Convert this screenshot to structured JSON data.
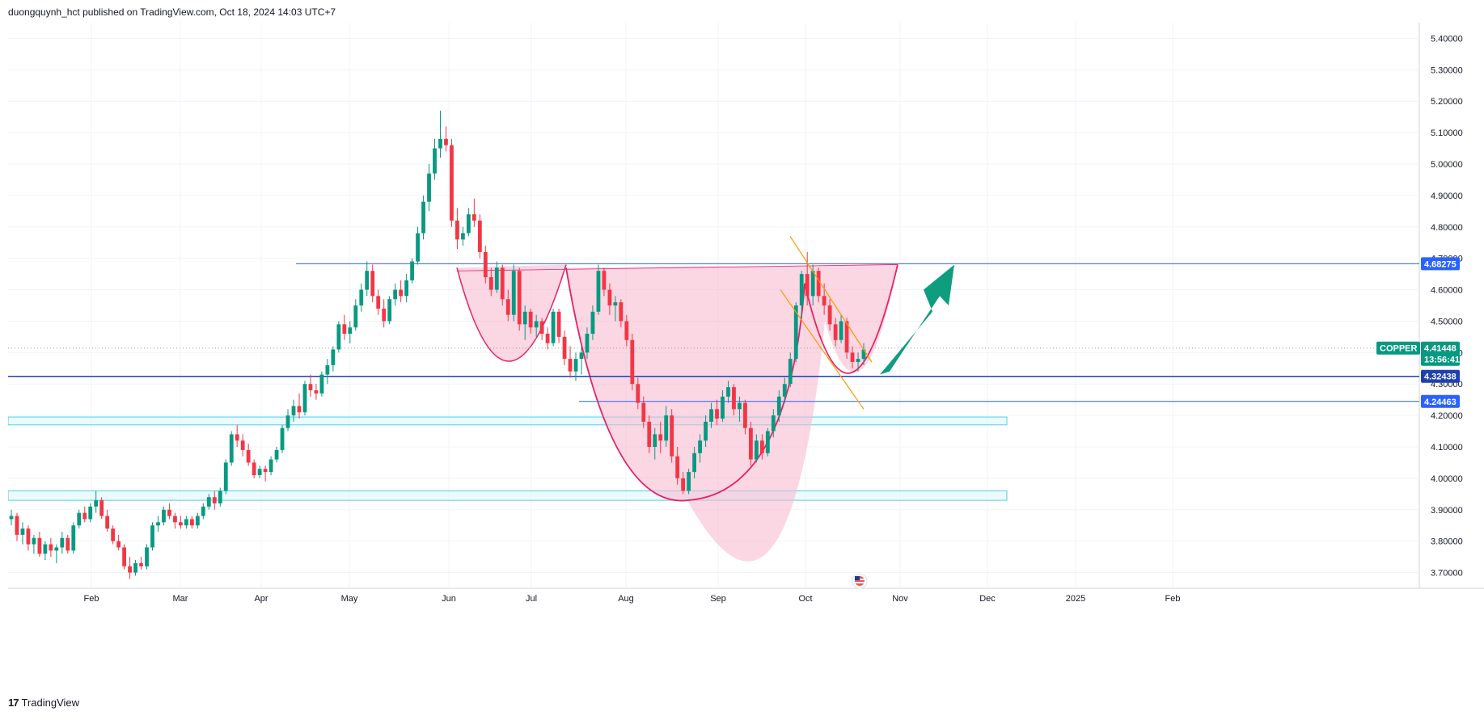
{
  "header": {
    "publish_line": "duongquynh_hct published on TradingView.com, Oct 18, 2024 14:03 UTC+7"
  },
  "footer": {
    "brand": "TradingView",
    "logo_glyph": "17"
  },
  "colors": {
    "up": "#089981",
    "down": "#f23645",
    "grid": "#f0f3fa",
    "resistance": "#2962ff",
    "pattern_fill": "#f8bbd0",
    "pattern_stroke": "#e91e63",
    "trend": "#ff9800",
    "zone_fill": "#e0f7fa",
    "zone_stroke": "#4dd0e1",
    "arrow": "#0f9d7f"
  },
  "chart_data": {
    "type": "candlestick",
    "symbol": "COPPER",
    "last_price": "4.41448",
    "countdown": "13:56:41",
    "price_axis": {
      "min": 3.65,
      "max": 5.45,
      "ticks": [
        "5.40000",
        "5.30000",
        "5.20000",
        "5.10000",
        "5.00000",
        "4.90000",
        "4.80000",
        "4.70000",
        "4.60000",
        "4.50000",
        "4.40000",
        "4.30000",
        "4.20000",
        "4.10000",
        "4.00000",
        "3.90000",
        "3.80000",
        "3.70000"
      ]
    },
    "time_axis": {
      "ticks": [
        "Feb",
        "Mar",
        "Apr",
        "May",
        "Jun",
        "Jul",
        "Aug",
        "Sep",
        "Oct",
        "Nov",
        "Dec",
        "2025",
        "Feb"
      ]
    },
    "candles": [
      {
        "o": 3.87,
        "h": 3.9,
        "l": 3.85,
        "c": 3.88
      },
      {
        "o": 3.88,
        "h": 3.89,
        "l": 3.8,
        "c": 3.82
      },
      {
        "o": 3.82,
        "h": 3.86,
        "l": 3.79,
        "c": 3.84
      },
      {
        "o": 3.84,
        "h": 3.85,
        "l": 3.77,
        "c": 3.79
      },
      {
        "o": 3.79,
        "h": 3.82,
        "l": 3.76,
        "c": 3.81
      },
      {
        "o": 3.81,
        "h": 3.83,
        "l": 3.75,
        "c": 3.76
      },
      {
        "o": 3.76,
        "h": 3.8,
        "l": 3.74,
        "c": 3.79
      },
      {
        "o": 3.79,
        "h": 3.81,
        "l": 3.75,
        "c": 3.77
      },
      {
        "o": 3.77,
        "h": 3.79,
        "l": 3.73,
        "c": 3.78
      },
      {
        "o": 3.78,
        "h": 3.83,
        "l": 3.76,
        "c": 3.81
      },
      {
        "o": 3.81,
        "h": 3.82,
        "l": 3.76,
        "c": 3.77
      },
      {
        "o": 3.77,
        "h": 3.86,
        "l": 3.76,
        "c": 3.85
      },
      {
        "o": 3.85,
        "h": 3.9,
        "l": 3.84,
        "c": 3.89
      },
      {
        "o": 3.89,
        "h": 3.91,
        "l": 3.86,
        "c": 3.87
      },
      {
        "o": 3.87,
        "h": 3.92,
        "l": 3.86,
        "c": 3.91
      },
      {
        "o": 3.91,
        "h": 3.96,
        "l": 3.89,
        "c": 3.93
      },
      {
        "o": 3.93,
        "h": 3.94,
        "l": 3.87,
        "c": 3.88
      },
      {
        "o": 3.88,
        "h": 3.9,
        "l": 3.83,
        "c": 3.84
      },
      {
        "o": 3.84,
        "h": 3.85,
        "l": 3.79,
        "c": 3.8
      },
      {
        "o": 3.8,
        "h": 3.82,
        "l": 3.77,
        "c": 3.78
      },
      {
        "o": 3.78,
        "h": 3.79,
        "l": 3.71,
        "c": 3.72
      },
      {
        "o": 3.72,
        "h": 3.75,
        "l": 3.68,
        "c": 3.7
      },
      {
        "o": 3.7,
        "h": 3.74,
        "l": 3.69,
        "c": 3.73
      },
      {
        "o": 3.73,
        "h": 3.75,
        "l": 3.71,
        "c": 3.72
      },
      {
        "o": 3.72,
        "h": 3.79,
        "l": 3.71,
        "c": 3.78
      },
      {
        "o": 3.78,
        "h": 3.86,
        "l": 3.77,
        "c": 3.85
      },
      {
        "o": 3.85,
        "h": 3.88,
        "l": 3.83,
        "c": 3.86
      },
      {
        "o": 3.86,
        "h": 3.91,
        "l": 3.85,
        "c": 3.9
      },
      {
        "o": 3.9,
        "h": 3.92,
        "l": 3.87,
        "c": 3.88
      },
      {
        "o": 3.88,
        "h": 3.89,
        "l": 3.84,
        "c": 3.86
      },
      {
        "o": 3.86,
        "h": 3.88,
        "l": 3.84,
        "c": 3.85
      },
      {
        "o": 3.85,
        "h": 3.88,
        "l": 3.84,
        "c": 3.87
      },
      {
        "o": 3.87,
        "h": 3.88,
        "l": 3.84,
        "c": 3.85
      },
      {
        "o": 3.85,
        "h": 3.89,
        "l": 3.84,
        "c": 3.88
      },
      {
        "o": 3.88,
        "h": 3.92,
        "l": 3.87,
        "c": 3.91
      },
      {
        "o": 3.91,
        "h": 3.95,
        "l": 3.9,
        "c": 3.94
      },
      {
        "o": 3.94,
        "h": 3.96,
        "l": 3.9,
        "c": 3.92
      },
      {
        "o": 3.92,
        "h": 3.97,
        "l": 3.91,
        "c": 3.96
      },
      {
        "o": 3.96,
        "h": 4.06,
        "l": 3.95,
        "c": 4.05
      },
      {
        "o": 4.05,
        "h": 4.15,
        "l": 4.04,
        "c": 4.14
      },
      {
        "o": 4.14,
        "h": 4.17,
        "l": 4.1,
        "c": 4.12
      },
      {
        "o": 4.12,
        "h": 4.14,
        "l": 4.07,
        "c": 4.09
      },
      {
        "o": 4.09,
        "h": 4.11,
        "l": 4.04,
        "c": 4.05
      },
      {
        "o": 4.05,
        "h": 4.06,
        "l": 4.0,
        "c": 4.01
      },
      {
        "o": 4.01,
        "h": 4.04,
        "l": 4.0,
        "c": 4.03
      },
      {
        "o": 4.03,
        "h": 4.04,
        "l": 3.99,
        "c": 4.02
      },
      {
        "o": 4.02,
        "h": 4.07,
        "l": 4.01,
        "c": 4.06
      },
      {
        "o": 4.06,
        "h": 4.1,
        "l": 4.05,
        "c": 4.09
      },
      {
        "o": 4.09,
        "h": 4.17,
        "l": 4.08,
        "c": 4.16
      },
      {
        "o": 4.16,
        "h": 4.22,
        "l": 4.15,
        "c": 4.2
      },
      {
        "o": 4.2,
        "h": 4.25,
        "l": 4.18,
        "c": 4.23
      },
      {
        "o": 4.23,
        "h": 4.27,
        "l": 4.19,
        "c": 4.21
      },
      {
        "o": 4.21,
        "h": 4.31,
        "l": 4.2,
        "c": 4.3
      },
      {
        "o": 4.3,
        "h": 4.33,
        "l": 4.26,
        "c": 4.28
      },
      {
        "o": 4.28,
        "h": 4.3,
        "l": 4.25,
        "c": 4.27
      },
      {
        "o": 4.27,
        "h": 4.34,
        "l": 4.26,
        "c": 4.33
      },
      {
        "o": 4.33,
        "h": 4.38,
        "l": 4.3,
        "c": 4.36
      },
      {
        "o": 4.36,
        "h": 4.42,
        "l": 4.34,
        "c": 4.41
      },
      {
        "o": 4.41,
        "h": 4.5,
        "l": 4.4,
        "c": 4.49
      },
      {
        "o": 4.49,
        "h": 4.52,
        "l": 4.44,
        "c": 4.46
      },
      {
        "o": 4.46,
        "h": 4.5,
        "l": 4.43,
        "c": 4.48
      },
      {
        "o": 4.48,
        "h": 4.57,
        "l": 4.47,
        "c": 4.55
      },
      {
        "o": 4.55,
        "h": 4.62,
        "l": 4.53,
        "c": 4.6
      },
      {
        "o": 4.6,
        "h": 4.69,
        "l": 4.58,
        "c": 4.66
      },
      {
        "o": 4.66,
        "h": 4.68,
        "l": 4.56,
        "c": 4.58
      },
      {
        "o": 4.58,
        "h": 4.6,
        "l": 4.52,
        "c": 4.54
      },
      {
        "o": 4.54,
        "h": 4.57,
        "l": 4.48,
        "c": 4.5
      },
      {
        "o": 4.5,
        "h": 4.58,
        "l": 4.49,
        "c": 4.57
      },
      {
        "o": 4.57,
        "h": 4.62,
        "l": 4.55,
        "c": 4.6
      },
      {
        "o": 4.6,
        "h": 4.63,
        "l": 4.56,
        "c": 4.58
      },
      {
        "o": 4.58,
        "h": 4.65,
        "l": 4.56,
        "c": 4.63
      },
      {
        "o": 4.63,
        "h": 4.7,
        "l": 4.62,
        "c": 4.69
      },
      {
        "o": 4.69,
        "h": 4.8,
        "l": 4.68,
        "c": 4.78
      },
      {
        "o": 4.78,
        "h": 4.9,
        "l": 4.76,
        "c": 4.88
      },
      {
        "o": 4.88,
        "h": 5.0,
        "l": 4.85,
        "c": 4.97
      },
      {
        "o": 4.97,
        "h": 5.08,
        "l": 4.95,
        "c": 5.05
      },
      {
        "o": 5.05,
        "h": 5.17,
        "l": 5.02,
        "c": 5.08
      },
      {
        "o": 5.08,
        "h": 5.12,
        "l": 5.04,
        "c": 5.06
      },
      {
        "o": 5.06,
        "h": 5.08,
        "l": 4.8,
        "c": 4.82
      },
      {
        "o": 4.82,
        "h": 4.86,
        "l": 4.73,
        "c": 4.76
      },
      {
        "o": 4.76,
        "h": 4.8,
        "l": 4.74,
        "c": 4.78
      },
      {
        "o": 4.78,
        "h": 4.86,
        "l": 4.77,
        "c": 4.84
      },
      {
        "o": 4.84,
        "h": 4.89,
        "l": 4.8,
        "c": 4.82
      },
      {
        "o": 4.82,
        "h": 4.84,
        "l": 4.7,
        "c": 4.72
      },
      {
        "o": 4.72,
        "h": 4.74,
        "l": 4.62,
        "c": 4.64
      },
      {
        "o": 4.64,
        "h": 4.67,
        "l": 4.58,
        "c": 4.6
      },
      {
        "o": 4.6,
        "h": 4.69,
        "l": 4.59,
        "c": 4.67
      },
      {
        "o": 4.67,
        "h": 4.68,
        "l": 4.55,
        "c": 4.57
      },
      {
        "o": 4.57,
        "h": 4.6,
        "l": 4.5,
        "c": 4.52
      },
      {
        "o": 4.52,
        "h": 4.68,
        "l": 4.5,
        "c": 4.66
      },
      {
        "o": 4.66,
        "h": 4.67,
        "l": 4.47,
        "c": 4.49
      },
      {
        "o": 4.49,
        "h": 4.55,
        "l": 4.44,
        "c": 4.53
      },
      {
        "o": 4.53,
        "h": 4.54,
        "l": 4.46,
        "c": 4.48
      },
      {
        "o": 4.48,
        "h": 4.52,
        "l": 4.45,
        "c": 4.5
      },
      {
        "o": 4.5,
        "h": 4.51,
        "l": 4.44,
        "c": 4.46
      },
      {
        "o": 4.46,
        "h": 4.48,
        "l": 4.41,
        "c": 4.43
      },
      {
        "o": 4.43,
        "h": 4.54,
        "l": 4.42,
        "c": 4.53
      },
      {
        "o": 4.53,
        "h": 4.54,
        "l": 4.43,
        "c": 4.45
      },
      {
        "o": 4.45,
        "h": 4.47,
        "l": 4.36,
        "c": 4.38
      },
      {
        "o": 4.38,
        "h": 4.42,
        "l": 4.32,
        "c": 4.34
      },
      {
        "o": 4.34,
        "h": 4.4,
        "l": 4.31,
        "c": 4.38
      },
      {
        "o": 4.38,
        "h": 4.42,
        "l": 4.33,
        "c": 4.4
      },
      {
        "o": 4.4,
        "h": 4.48,
        "l": 4.38,
        "c": 4.46
      },
      {
        "o": 4.46,
        "h": 4.55,
        "l": 4.44,
        "c": 4.53
      },
      {
        "o": 4.53,
        "h": 4.68,
        "l": 4.52,
        "c": 4.66
      },
      {
        "o": 4.66,
        "h": 4.67,
        "l": 4.58,
        "c": 4.6
      },
      {
        "o": 4.6,
        "h": 4.62,
        "l": 4.52,
        "c": 4.55
      },
      {
        "o": 4.55,
        "h": 4.58,
        "l": 4.5,
        "c": 4.56
      },
      {
        "o": 4.56,
        "h": 4.57,
        "l": 4.48,
        "c": 4.5
      },
      {
        "o": 4.5,
        "h": 4.52,
        "l": 4.42,
        "c": 4.44
      },
      {
        "o": 4.44,
        "h": 4.46,
        "l": 4.28,
        "c": 4.3
      },
      {
        "o": 4.3,
        "h": 4.32,
        "l": 4.22,
        "c": 4.24
      },
      {
        "o": 4.24,
        "h": 4.26,
        "l": 4.16,
        "c": 4.18
      },
      {
        "o": 4.18,
        "h": 4.2,
        "l": 4.08,
        "c": 4.1
      },
      {
        "o": 4.1,
        "h": 4.16,
        "l": 4.06,
        "c": 4.14
      },
      {
        "o": 4.14,
        "h": 4.18,
        "l": 4.08,
        "c": 4.12
      },
      {
        "o": 4.12,
        "h": 4.23,
        "l": 4.1,
        "c": 4.2
      },
      {
        "o": 4.2,
        "h": 4.22,
        "l": 4.05,
        "c": 4.07
      },
      {
        "o": 4.07,
        "h": 4.1,
        "l": 3.98,
        "c": 4.0
      },
      {
        "o": 4.0,
        "h": 4.02,
        "l": 3.95,
        "c": 3.96
      },
      {
        "o": 3.96,
        "h": 4.03,
        "l": 3.95,
        "c": 4.02
      },
      {
        "o": 4.02,
        "h": 4.1,
        "l": 4.0,
        "c": 4.08
      },
      {
        "o": 4.08,
        "h": 4.14,
        "l": 4.05,
        "c": 4.12
      },
      {
        "o": 4.12,
        "h": 4.2,
        "l": 4.1,
        "c": 4.18
      },
      {
        "o": 4.18,
        "h": 4.24,
        "l": 4.16,
        "c": 4.22
      },
      {
        "o": 4.22,
        "h": 4.25,
        "l": 4.17,
        "c": 4.19
      },
      {
        "o": 4.19,
        "h": 4.28,
        "l": 4.18,
        "c": 4.26
      },
      {
        "o": 4.26,
        "h": 4.31,
        "l": 4.24,
        "c": 4.29
      },
      {
        "o": 4.29,
        "h": 4.3,
        "l": 4.2,
        "c": 4.22
      },
      {
        "o": 4.22,
        "h": 4.26,
        "l": 4.18,
        "c": 4.24
      },
      {
        "o": 4.24,
        "h": 4.25,
        "l": 4.14,
        "c": 4.16
      },
      {
        "o": 4.16,
        "h": 4.18,
        "l": 4.04,
        "c": 4.06
      },
      {
        "o": 4.06,
        "h": 4.14,
        "l": 4.05,
        "c": 4.12
      },
      {
        "o": 4.12,
        "h": 4.14,
        "l": 4.06,
        "c": 4.08
      },
      {
        "o": 4.08,
        "h": 4.16,
        "l": 4.07,
        "c": 4.15
      },
      {
        "o": 4.15,
        "h": 4.22,
        "l": 4.13,
        "c": 4.2
      },
      {
        "o": 4.2,
        "h": 4.28,
        "l": 4.18,
        "c": 4.26
      },
      {
        "o": 4.26,
        "h": 4.32,
        "l": 4.24,
        "c": 4.3
      },
      {
        "o": 4.3,
        "h": 4.4,
        "l": 4.29,
        "c": 4.38
      },
      {
        "o": 4.38,
        "h": 4.56,
        "l": 4.37,
        "c": 4.55
      },
      {
        "o": 4.55,
        "h": 4.66,
        "l": 4.5,
        "c": 4.65
      },
      {
        "o": 4.65,
        "h": 4.72,
        "l": 4.55,
        "c": 4.58
      },
      {
        "o": 4.58,
        "h": 4.68,
        "l": 4.55,
        "c": 4.66
      },
      {
        "o": 4.66,
        "h": 4.67,
        "l": 4.56,
        "c": 4.58
      },
      {
        "o": 4.58,
        "h": 4.62,
        "l": 4.52,
        "c": 4.55
      },
      {
        "o": 4.55,
        "h": 4.57,
        "l": 4.47,
        "c": 4.49
      },
      {
        "o": 4.49,
        "h": 4.51,
        "l": 4.42,
        "c": 4.44
      },
      {
        "o": 4.44,
        "h": 4.52,
        "l": 4.43,
        "c": 4.5
      },
      {
        "o": 4.5,
        "h": 4.51,
        "l": 4.38,
        "c": 4.4
      },
      {
        "o": 4.4,
        "h": 4.42,
        "l": 4.35,
        "c": 4.37
      },
      {
        "o": 4.37,
        "h": 4.4,
        "l": 4.34,
        "c": 4.38
      },
      {
        "o": 4.38,
        "h": 4.43,
        "l": 4.36,
        "c": 4.41
      }
    ]
  },
  "annotations": {
    "levels": [
      {
        "value": "4.68275",
        "price": 4.68275,
        "color": "#2962ff"
      },
      {
        "value": "4.32438",
        "price": 4.32438,
        "color": "#1e40af"
      },
      {
        "value": "4.24463",
        "price": 4.24463,
        "color": "#2962ff"
      }
    ],
    "zones": [
      {
        "top": 4.195,
        "bottom": 4.17
      },
      {
        "top": 3.96,
        "bottom": 3.93
      }
    ]
  }
}
